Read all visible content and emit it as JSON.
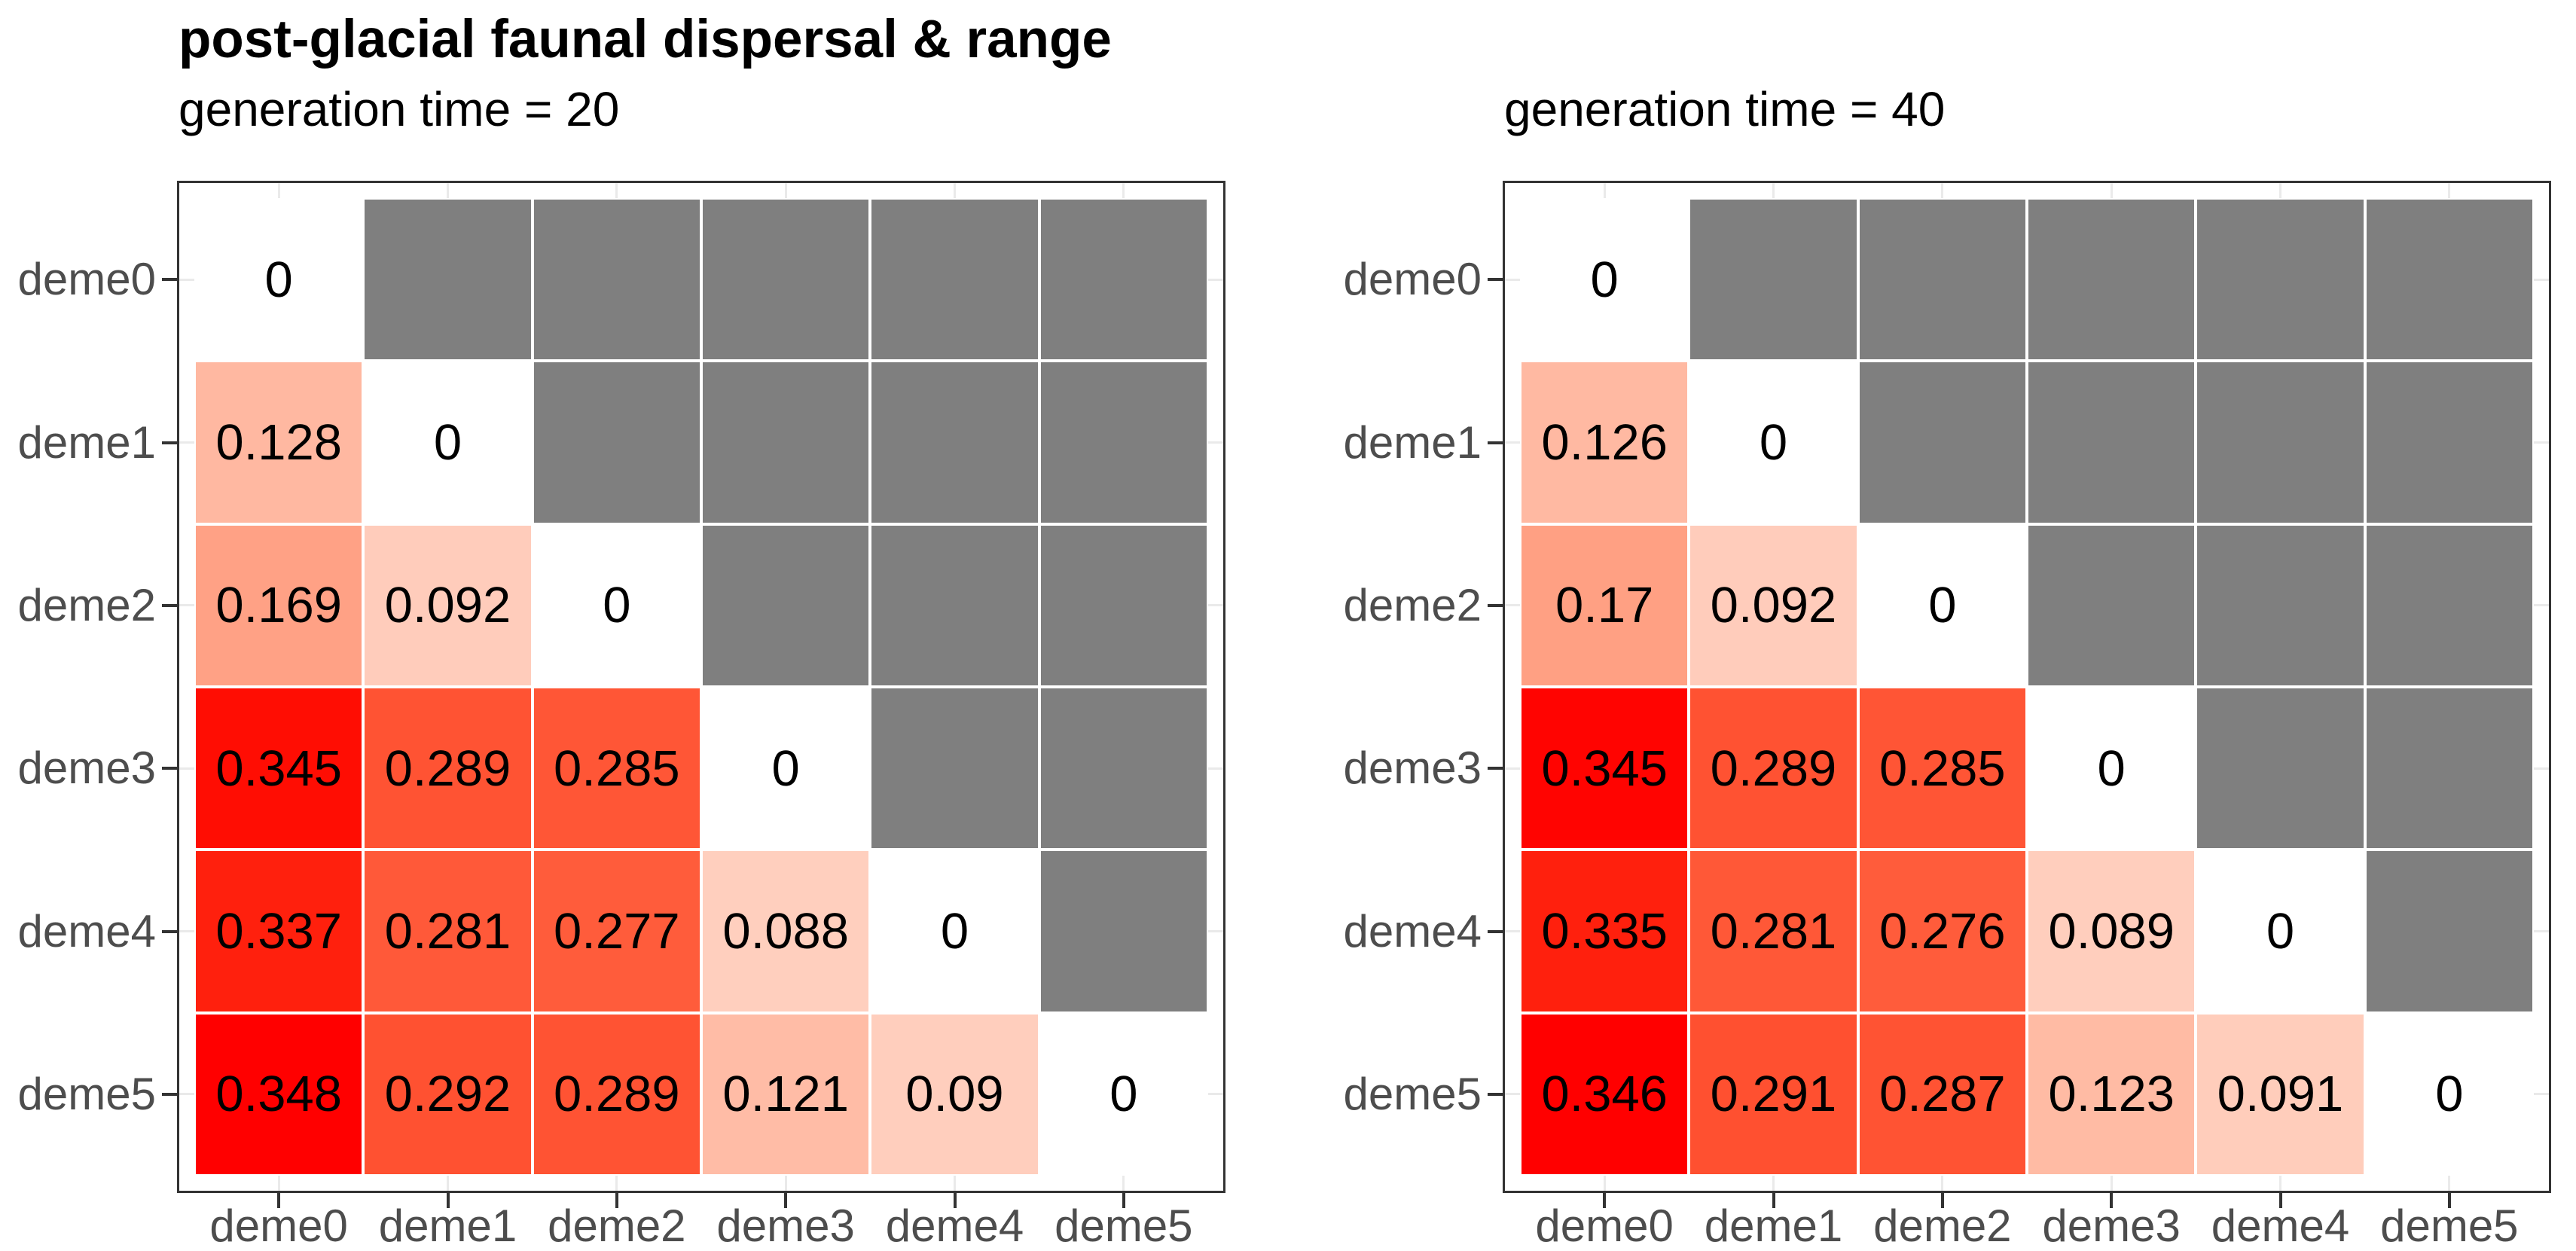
{
  "title": "post-glacial faunal dispersal & range",
  "colors": {
    "fill_low": "#FFFFFF",
    "fill_high": "#FF0000",
    "na_fill": "#7F7F7F",
    "panel_border": "#333333",
    "axis_text": "#4D4D4D",
    "grid_line": "#EAEAEA",
    "tick": "#333333",
    "cell_text": "#000000",
    "title_text": "#000000"
  },
  "chart_data": [
    {
      "type": "heatmap",
      "subtitle": "generation time = 20",
      "x_categories": [
        "deme0",
        "deme1",
        "deme2",
        "deme3",
        "deme4",
        "deme5"
      ],
      "y_categories": [
        "deme0",
        "deme1",
        "deme2",
        "deme3",
        "deme4",
        "deme5"
      ],
      "matrix": [
        [
          0,
          null,
          null,
          null,
          null,
          null
        ],
        [
          0.128,
          0,
          null,
          null,
          null,
          null
        ],
        [
          0.169,
          0.092,
          0,
          null,
          null,
          null
        ],
        [
          0.345,
          0.289,
          0.285,
          0,
          null,
          null
        ],
        [
          0.337,
          0.281,
          0.277,
          0.088,
          0,
          null
        ],
        [
          0.348,
          0.292,
          0.289,
          0.121,
          0.09,
          0
        ]
      ],
      "legend": "none",
      "grid": "on"
    },
    {
      "type": "heatmap",
      "subtitle": "generation time = 40",
      "x_categories": [
        "deme0",
        "deme1",
        "deme2",
        "deme3",
        "deme4",
        "deme5"
      ],
      "y_categories": [
        "deme0",
        "deme1",
        "deme2",
        "deme3",
        "deme4",
        "deme5"
      ],
      "matrix": [
        [
          0,
          null,
          null,
          null,
          null,
          null
        ],
        [
          0.126,
          0,
          null,
          null,
          null,
          null
        ],
        [
          0.17,
          0.092,
          0,
          null,
          null,
          null
        ],
        [
          0.345,
          0.289,
          0.285,
          0,
          null,
          null
        ],
        [
          0.335,
          0.281,
          0.276,
          0.089,
          0,
          null
        ],
        [
          0.346,
          0.291,
          0.287,
          0.123,
          0.091,
          0
        ]
      ],
      "legend": "none",
      "grid": "on"
    }
  ]
}
